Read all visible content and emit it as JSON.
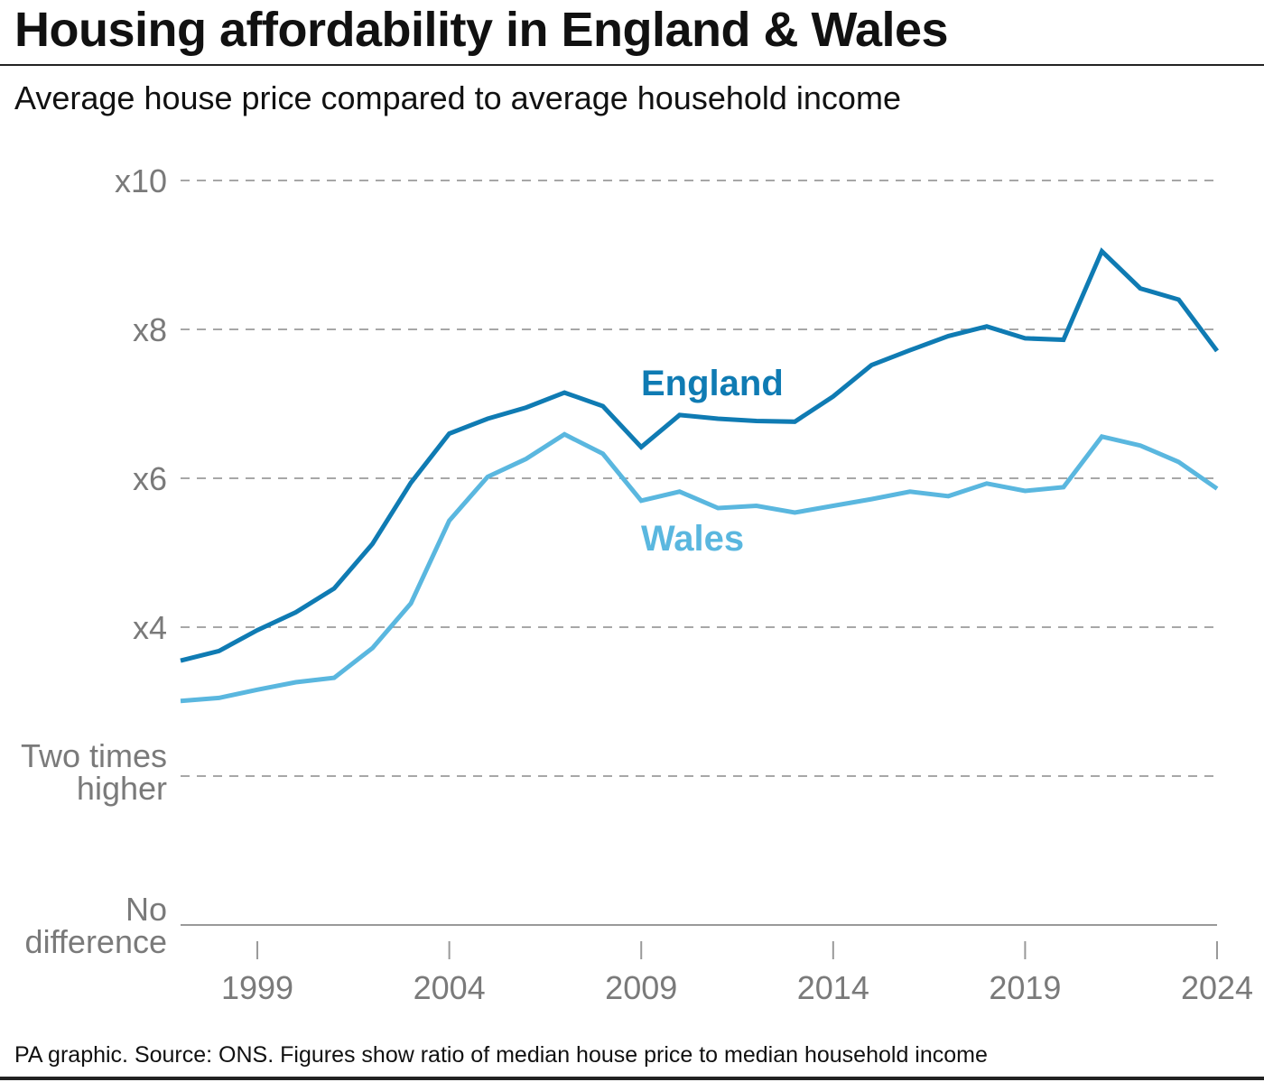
{
  "header": {
    "title": "Housing affordability in England & Wales",
    "subtitle": "Average house price compared to average household income"
  },
  "footer": {
    "source": "PA graphic. Source: ONS. Figures show ratio of median house price to median household income"
  },
  "colors": {
    "england": "#0f7bb3",
    "wales": "#5ab7df",
    "grid": "#8a8a8a",
    "axis": "#999999",
    "tick_text": "#7a7a7a"
  },
  "chart_data": {
    "type": "line",
    "title": "Housing affordability in England & Wales",
    "subtitle": "Average house price compared to average household income",
    "xlabel": "",
    "ylabel": "",
    "x": [
      1997,
      1998,
      1999,
      2000,
      2001,
      2002,
      2003,
      2004,
      2005,
      2006,
      2007,
      2008,
      2009,
      2010,
      2011,
      2012,
      2013,
      2014,
      2015,
      2016,
      2017,
      2018,
      2019,
      2020,
      2021,
      2022,
      2023,
      2024
    ],
    "xlim": [
      1997,
      2024
    ],
    "xticks": [
      1999,
      2004,
      2009,
      2014,
      2019,
      2024
    ],
    "xtick_labels": [
      "1999",
      "2004",
      "2009",
      "2014",
      "2019",
      "2024"
    ],
    "ylim": [
      0,
      10
    ],
    "yticks": [
      0,
      2,
      4,
      6,
      8,
      10
    ],
    "ytick_labels": [
      [
        "No",
        "difference"
      ],
      [
        "Two times",
        "higher"
      ],
      [
        "x4"
      ],
      [
        "x6"
      ],
      [
        "x8"
      ],
      [
        "x10"
      ]
    ],
    "grid": true,
    "series": [
      {
        "name": "England",
        "label": "England",
        "values": [
          3.55,
          3.68,
          3.96,
          4.2,
          4.52,
          5.12,
          5.94,
          6.6,
          6.8,
          6.95,
          7.15,
          6.97,
          6.42,
          6.85,
          6.8,
          6.77,
          6.76,
          7.1,
          7.52,
          7.72,
          7.91,
          8.04,
          7.88,
          7.86,
          9.05,
          8.55,
          8.4,
          7.71
        ]
      },
      {
        "name": "Wales",
        "label": "Wales",
        "values": [
          3.01,
          3.05,
          3.16,
          3.26,
          3.32,
          3.72,
          4.32,
          5.43,
          6.02,
          6.26,
          6.59,
          6.33,
          5.7,
          5.82,
          5.6,
          5.63,
          5.54,
          5.63,
          5.72,
          5.82,
          5.76,
          5.93,
          5.83,
          5.88,
          6.56,
          6.44,
          6.22,
          5.86
        ]
      }
    ]
  }
}
